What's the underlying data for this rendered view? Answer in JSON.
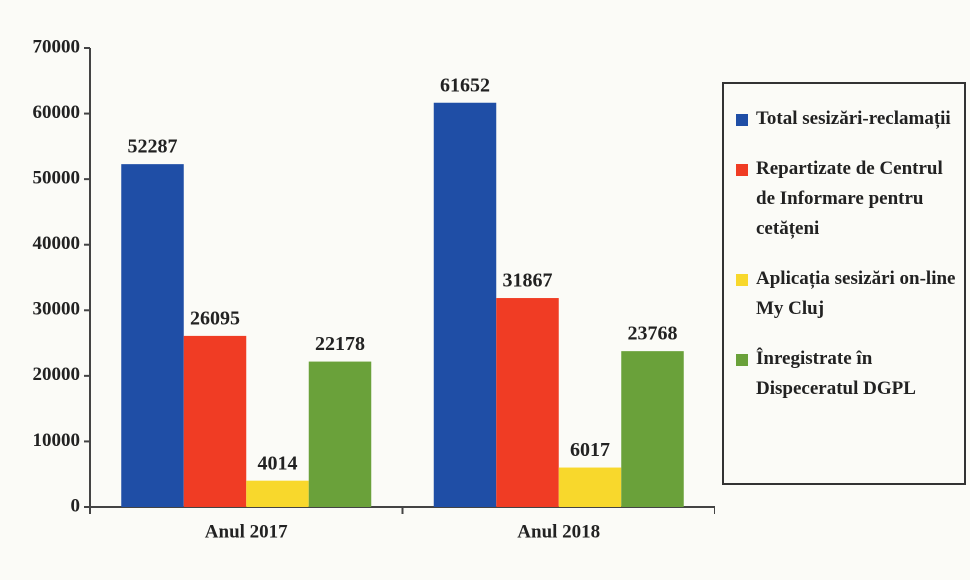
{
  "chart_data": {
    "type": "bar",
    "categories": [
      "Anul 2017",
      "Anul 2018"
    ],
    "series": [
      {
        "name": "Total sesizări-reclamații",
        "color": "#1f4ea6",
        "values": [
          52287,
          61652
        ]
      },
      {
        "name": "Repartizate de Centrul de Informare pentru cetățeni",
        "color": "#f03c24",
        "values": [
          26095,
          31867
        ]
      },
      {
        "name": "Aplicația sesizări on-line My Cluj",
        "color": "#f8d82c",
        "values": [
          4014,
          6017
        ]
      },
      {
        "name": "Înregistrate în Dispeceratul DGPL",
        "color": "#6aa13a",
        "values": [
          22178,
          23768
        ]
      }
    ],
    "ylim": [
      0,
      70000
    ],
    "yticks": [
      0,
      10000,
      20000,
      30000,
      40000,
      50000,
      60000,
      70000
    ],
    "grid": false,
    "legend": "right"
  }
}
